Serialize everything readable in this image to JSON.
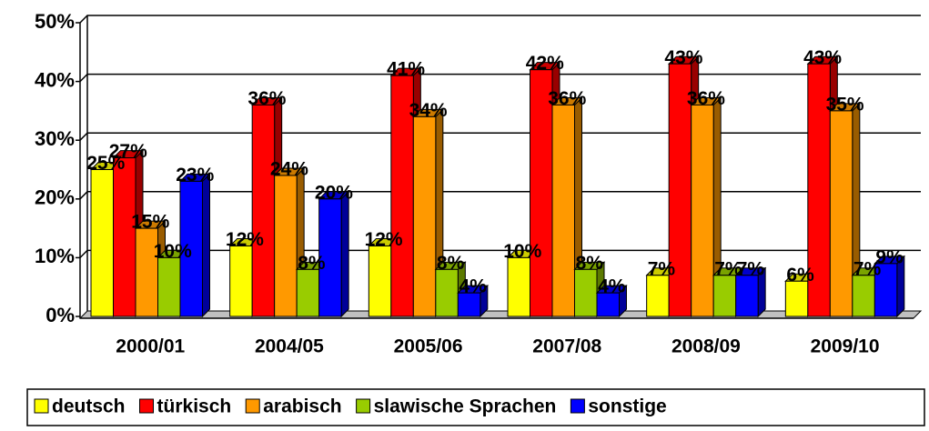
{
  "chart_data": {
    "type": "bar",
    "categories": [
      "2000/01",
      "2004/05",
      "2005/06",
      "2007/08",
      "2008/09",
      "2009/10"
    ],
    "series": [
      {
        "name": "deutsch",
        "color": "#ffff00",
        "values": [
          25,
          12,
          12,
          10,
          7,
          6
        ],
        "value_labels": [
          "25%",
          "12%",
          "12%",
          "10%",
          "7%",
          "6%"
        ]
      },
      {
        "name": "türkisch",
        "color": "#ff0000",
        "values": [
          27,
          36,
          41,
          42,
          43,
          43
        ],
        "value_labels": [
          "27%",
          "36%",
          "41%",
          "42%",
          "43%",
          "43%"
        ]
      },
      {
        "name": "arabisch",
        "color": "#ff9900",
        "values": [
          15,
          24,
          34,
          36,
          36,
          35
        ],
        "value_labels": [
          "15%",
          "24%",
          "34%",
          "36%",
          "36%",
          "35%"
        ]
      },
      {
        "name": "slawische Sprachen",
        "color": "#99cc00",
        "values": [
          10,
          8,
          8,
          8,
          7,
          7
        ],
        "value_labels": [
          "10%",
          "8%",
          "8%",
          "8%",
          "7%",
          "7%"
        ]
      },
      {
        "name": "sonstige",
        "color": "#0000ff",
        "values": [
          23,
          20,
          4,
          4,
          7,
          9
        ],
        "value_labels": [
          "23%",
          "20%",
          "4%",
          "4%",
          "7%",
          "9%"
        ]
      }
    ],
    "ylim": [
      0,
      50
    ],
    "yticks": [
      {
        "value": 0,
        "label": "0%"
      },
      {
        "value": 10,
        "label": "10%"
      },
      {
        "value": 20,
        "label": "20%"
      },
      {
        "value": 30,
        "label": "30%"
      },
      {
        "value": 40,
        "label": "40%"
      },
      {
        "value": 50,
        "label": "50%"
      }
    ],
    "grid": true,
    "legend": "bottom"
  }
}
